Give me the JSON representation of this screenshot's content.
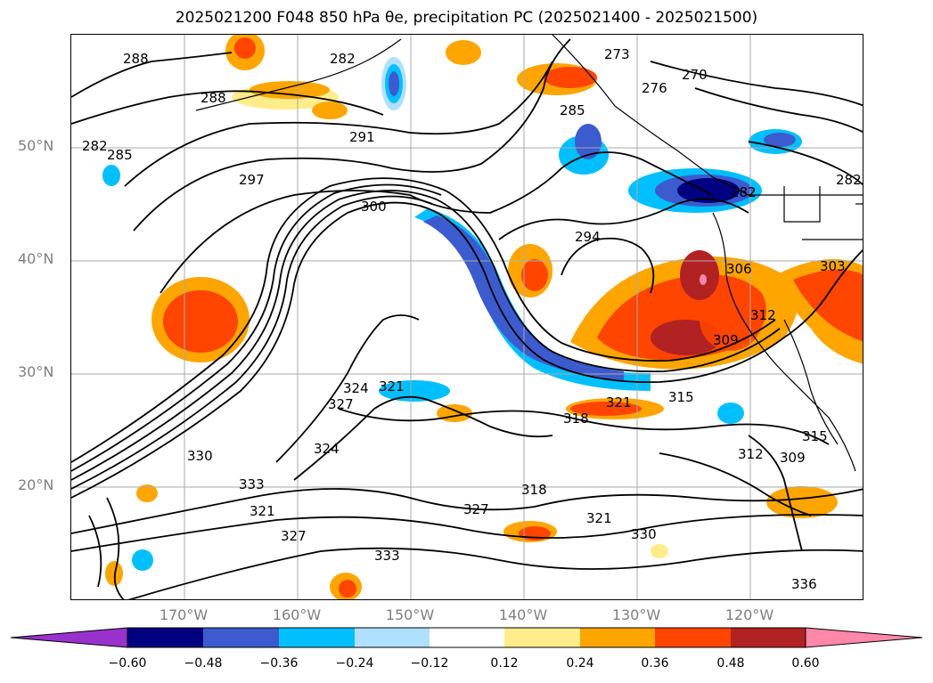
{
  "title": "2025021200 F048 850 hPa θe, precipitation PC (2025021400 - 2025021500)",
  "map": {
    "projection": "PlateCarree",
    "lon_range": [
      -180,
      -110
    ],
    "lat_range": [
      10,
      60
    ],
    "lat_labels": [
      "50°N",
      "40°N",
      "30°N",
      "20°N"
    ],
    "lon_labels": [
      "170°W",
      "160°W",
      "150°W",
      "140°W",
      "130°W",
      "120°W"
    ],
    "gridline_color": "#aaaaaa"
  },
  "contour_labels": [
    "288",
    "288",
    "282",
    "285",
    "282",
    "273",
    "276",
    "270",
    "285",
    "291",
    "297",
    "300",
    "294",
    "282",
    "282",
    "306",
    "303",
    "312",
    "309",
    "321",
    "315",
    "318",
    "315",
    "312",
    "324",
    "327",
    "321",
    "324",
    "333",
    "330",
    "333",
    "327",
    "321",
    "327",
    "318",
    "321",
    "330",
    "309",
    "336"
  ],
  "colorbar": {
    "ticks": [
      "−0.60",
      "−0.48",
      "−0.36",
      "−0.24",
      "−0.12",
      "0.12",
      "0.24",
      "0.36",
      "0.48",
      "0.60"
    ],
    "colors": [
      "#9932cc",
      "#000080",
      "#3b5bce",
      "#00bfff",
      "#b0e0ff",
      "#ffffff",
      "#ffec8b",
      "#ffa500",
      "#ff4500",
      "#b22222",
      "#ff88aa"
    ],
    "extend": "both"
  }
}
